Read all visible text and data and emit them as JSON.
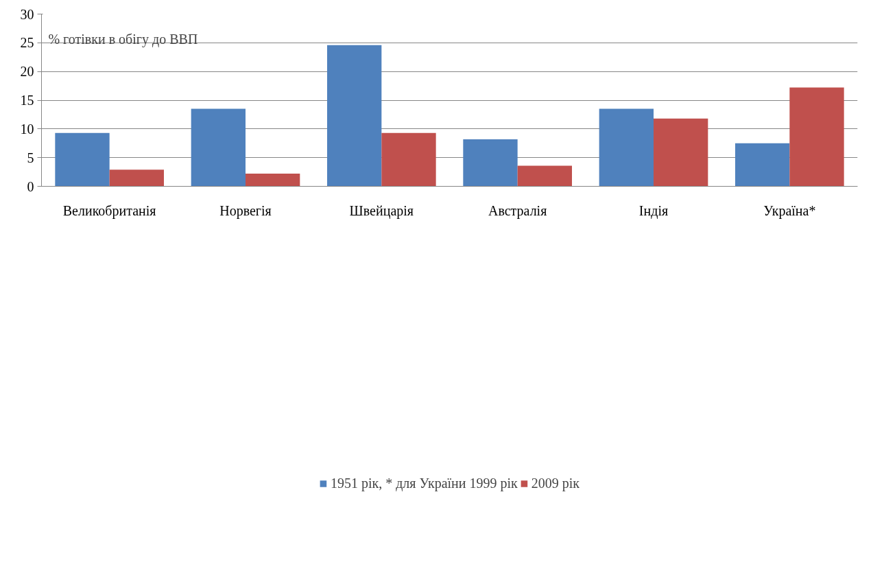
{
  "chart_data": {
    "type": "bar",
    "categories": [
      "Великобританія",
      "Норвегія",
      "Швейцарія",
      "Австралія",
      "Індія",
      "Україна*"
    ],
    "series": [
      {
        "name": "1951 рік, * для України 1999 рік",
        "color": "#4f81bd",
        "values": [
          9.3,
          13.5,
          24.6,
          8.2,
          13.5,
          7.5
        ]
      },
      {
        "name": "2009 рік",
        "color": "#c0504d",
        "values": [
          2.9,
          2.2,
          9.3,
          3.6,
          11.8,
          17.2
        ]
      }
    ],
    "ylim": [
      0,
      30
    ],
    "yticks": [
      0,
      5,
      10,
      15,
      20,
      25,
      30
    ],
    "grid": "y",
    "legend": "bottom",
    "annotations": [
      "% готівки в обігу до ВВП"
    ]
  }
}
